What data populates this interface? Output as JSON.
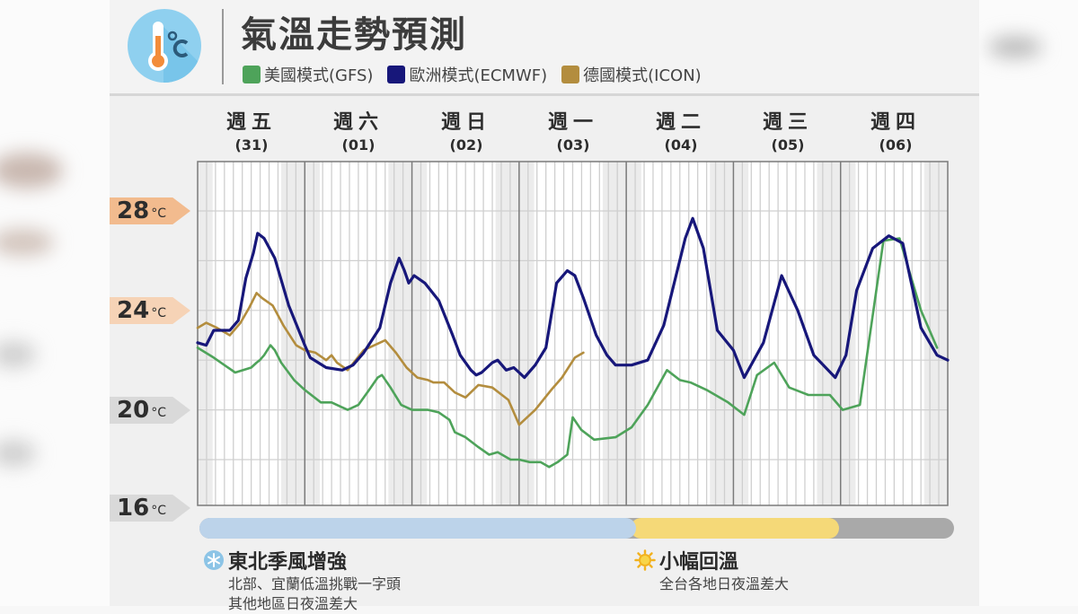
{
  "header": {
    "title": "氣溫走勢預測",
    "icon": "thermometer-celsius-icon",
    "legend": [
      {
        "label": "美國模式(GFS)",
        "color": "#4ea35a"
      },
      {
        "label": "歐洲模式(ECMWF)",
        "color": "#17177a"
      },
      {
        "label": "德國模式(ICON)",
        "color": "#b38d3e"
      }
    ]
  },
  "days": [
    {
      "name": "週五",
      "date": "(31)"
    },
    {
      "name": "週六",
      "date": "(01)"
    },
    {
      "name": "週日",
      "date": "(02)"
    },
    {
      "name": "週一",
      "date": "(03)"
    },
    {
      "name": "週二",
      "date": "(04)"
    },
    {
      "name": "週三",
      "date": "(05)"
    },
    {
      "name": "週四",
      "date": "(06)"
    }
  ],
  "y_axis": [
    {
      "value": "28",
      "unit": "°C"
    },
    {
      "value": "24",
      "unit": "°C"
    },
    {
      "value": "20",
      "unit": "°C"
    },
    {
      "value": "16",
      "unit": "°C"
    }
  ],
  "phases": [
    {
      "color": "#bcd3ea",
      "span": "週五–週二早"
    },
    {
      "color": "#f5d978",
      "span": "週二–週三"
    },
    {
      "color": "#a9a9a9",
      "span": "週四"
    }
  ],
  "notes": [
    {
      "icon": "snowflake-icon",
      "title": "東北季風增強",
      "lines": [
        "北部、宜蘭低溫挑戰一字頭",
        "其他地區日夜溫差大"
      ]
    },
    {
      "icon": "sun-icon",
      "title": "小幅回溫",
      "lines": [
        "全台各地日夜溫差大"
      ]
    }
  ],
  "chart_data": {
    "type": "line",
    "title": "氣溫走勢預測",
    "xlabel": "",
    "ylabel": "°C",
    "ylim": [
      16,
      30
    ],
    "y_ticks": [
      16,
      20,
      24,
      28
    ],
    "x_categories": [
      "週五(31)",
      "週六(01)",
      "週日(02)",
      "週一(03)",
      "週二(04)",
      "週三(05)",
      "週四(06)"
    ],
    "x_unit": "day index (0 = start of 週五, 7 = end of 週四)",
    "grid": true,
    "legend_position": "top",
    "series": [
      {
        "name": "美國模式(GFS)",
        "color": "#4ea35a",
        "points": [
          [
            0.0,
            22.5
          ],
          [
            0.15,
            22.1
          ],
          [
            0.35,
            21.5
          ],
          [
            0.5,
            21.7
          ],
          [
            0.55,
            21.9
          ],
          [
            0.58,
            22.0
          ],
          [
            0.62,
            22.2
          ],
          [
            0.68,
            22.6
          ],
          [
            0.72,
            22.4
          ],
          [
            0.78,
            21.9
          ],
          [
            0.9,
            21.2
          ],
          [
            1.0,
            20.8
          ],
          [
            1.15,
            20.3
          ],
          [
            1.25,
            20.3
          ],
          [
            1.4,
            20.0
          ],
          [
            1.5,
            20.2
          ],
          [
            1.6,
            20.8
          ],
          [
            1.68,
            21.3
          ],
          [
            1.72,
            21.4
          ],
          [
            1.8,
            20.9
          ],
          [
            1.9,
            20.2
          ],
          [
            2.0,
            20.0
          ],
          [
            2.15,
            20.0
          ],
          [
            2.25,
            19.9
          ],
          [
            2.35,
            19.6
          ],
          [
            2.4,
            19.1
          ],
          [
            2.5,
            18.9
          ],
          [
            2.62,
            18.5
          ],
          [
            2.72,
            18.2
          ],
          [
            2.8,
            18.3
          ],
          [
            2.92,
            18.0
          ],
          [
            3.0,
            18.0
          ],
          [
            3.1,
            17.9
          ],
          [
            3.2,
            17.9
          ],
          [
            3.28,
            17.7
          ],
          [
            3.36,
            17.9
          ],
          [
            3.45,
            18.2
          ],
          [
            3.5,
            19.7
          ],
          [
            3.58,
            19.2
          ],
          [
            3.7,
            18.8
          ],
          [
            3.9,
            18.9
          ],
          [
            4.05,
            19.3
          ],
          [
            4.2,
            20.2
          ],
          [
            4.38,
            21.6
          ],
          [
            4.5,
            21.2
          ],
          [
            4.6,
            21.1
          ],
          [
            4.75,
            20.8
          ],
          [
            4.95,
            20.3
          ],
          [
            5.1,
            19.8
          ],
          [
            5.22,
            21.4
          ],
          [
            5.38,
            21.9
          ],
          [
            5.52,
            20.9
          ],
          [
            5.7,
            20.6
          ],
          [
            5.9,
            20.6
          ],
          [
            6.02,
            20.0
          ],
          [
            6.18,
            20.2
          ],
          [
            6.4,
            26.8
          ],
          [
            6.55,
            26.9
          ],
          [
            6.75,
            24.0
          ],
          [
            6.9,
            22.5
          ]
        ]
      },
      {
        "name": "歐洲模式(ECMWF)",
        "color": "#17177a",
        "points": [
          [
            0.0,
            22.7
          ],
          [
            0.08,
            22.6
          ],
          [
            0.15,
            23.2
          ],
          [
            0.25,
            23.2
          ],
          [
            0.3,
            23.2
          ],
          [
            0.38,
            23.6
          ],
          [
            0.45,
            25.3
          ],
          [
            0.52,
            26.3
          ],
          [
            0.56,
            27.1
          ],
          [
            0.62,
            26.9
          ],
          [
            0.72,
            26.1
          ],
          [
            0.85,
            24.2
          ],
          [
            1.0,
            22.6
          ],
          [
            1.05,
            22.1
          ],
          [
            1.2,
            21.7
          ],
          [
            1.35,
            21.6
          ],
          [
            1.45,
            21.8
          ],
          [
            1.55,
            22.3
          ],
          [
            1.7,
            23.3
          ],
          [
            1.8,
            25.1
          ],
          [
            1.88,
            26.1
          ],
          [
            1.93,
            25.6
          ],
          [
            1.97,
            25.1
          ],
          [
            2.02,
            25.4
          ],
          [
            2.12,
            25.1
          ],
          [
            2.25,
            24.4
          ],
          [
            2.38,
            23.0
          ],
          [
            2.45,
            22.2
          ],
          [
            2.55,
            21.6
          ],
          [
            2.6,
            21.4
          ],
          [
            2.65,
            21.5
          ],
          [
            2.75,
            21.9
          ],
          [
            2.8,
            22.0
          ],
          [
            2.88,
            21.6
          ],
          [
            2.95,
            21.7
          ],
          [
            3.0,
            21.5
          ],
          [
            3.05,
            21.3
          ],
          [
            3.15,
            21.8
          ],
          [
            3.25,
            22.5
          ],
          [
            3.35,
            25.1
          ],
          [
            3.45,
            25.6
          ],
          [
            3.52,
            25.4
          ],
          [
            3.6,
            24.5
          ],
          [
            3.72,
            23.0
          ],
          [
            3.82,
            22.2
          ],
          [
            3.9,
            21.8
          ],
          [
            4.05,
            21.8
          ],
          [
            4.2,
            22.0
          ],
          [
            4.35,
            23.4
          ],
          [
            4.55,
            26.9
          ],
          [
            4.62,
            27.7
          ],
          [
            4.72,
            26.5
          ],
          [
            4.85,
            23.2
          ],
          [
            5.0,
            22.4
          ],
          [
            5.1,
            21.3
          ],
          [
            5.28,
            22.7
          ],
          [
            5.45,
            25.4
          ],
          [
            5.6,
            24.0
          ],
          [
            5.75,
            22.2
          ],
          [
            5.95,
            21.3
          ],
          [
            6.05,
            22.2
          ],
          [
            6.15,
            24.8
          ],
          [
            6.3,
            26.5
          ],
          [
            6.45,
            27.0
          ],
          [
            6.58,
            26.7
          ],
          [
            6.75,
            23.3
          ],
          [
            6.9,
            22.2
          ],
          [
            7.0,
            22.0
          ]
        ]
      },
      {
        "name": "德國模式(ICON)",
        "color": "#b38d3e",
        "points": [
          [
            0.0,
            23.3
          ],
          [
            0.08,
            23.5
          ],
          [
            0.18,
            23.3
          ],
          [
            0.3,
            23.0
          ],
          [
            0.4,
            23.5
          ],
          [
            0.48,
            24.1
          ],
          [
            0.55,
            24.7
          ],
          [
            0.6,
            24.5
          ],
          [
            0.7,
            24.2
          ],
          [
            0.8,
            23.4
          ],
          [
            0.92,
            22.6
          ],
          [
            1.0,
            22.4
          ],
          [
            1.1,
            22.3
          ],
          [
            1.2,
            22.0
          ],
          [
            1.25,
            22.2
          ],
          [
            1.3,
            21.9
          ],
          [
            1.4,
            21.6
          ],
          [
            1.55,
            22.4
          ],
          [
            1.65,
            22.6
          ],
          [
            1.75,
            22.8
          ],
          [
            1.85,
            22.3
          ],
          [
            1.95,
            21.7
          ],
          [
            2.05,
            21.3
          ],
          [
            2.15,
            21.2
          ],
          [
            2.2,
            21.1
          ],
          [
            2.3,
            21.1
          ],
          [
            2.4,
            20.7
          ],
          [
            2.5,
            20.5
          ],
          [
            2.62,
            21.0
          ],
          [
            2.75,
            20.9
          ],
          [
            2.9,
            20.4
          ],
          [
            3.0,
            19.4
          ],
          [
            3.15,
            20.0
          ],
          [
            3.3,
            20.8
          ],
          [
            3.4,
            21.3
          ],
          [
            3.52,
            22.1
          ],
          [
            3.6,
            22.3
          ]
        ]
      }
    ]
  }
}
